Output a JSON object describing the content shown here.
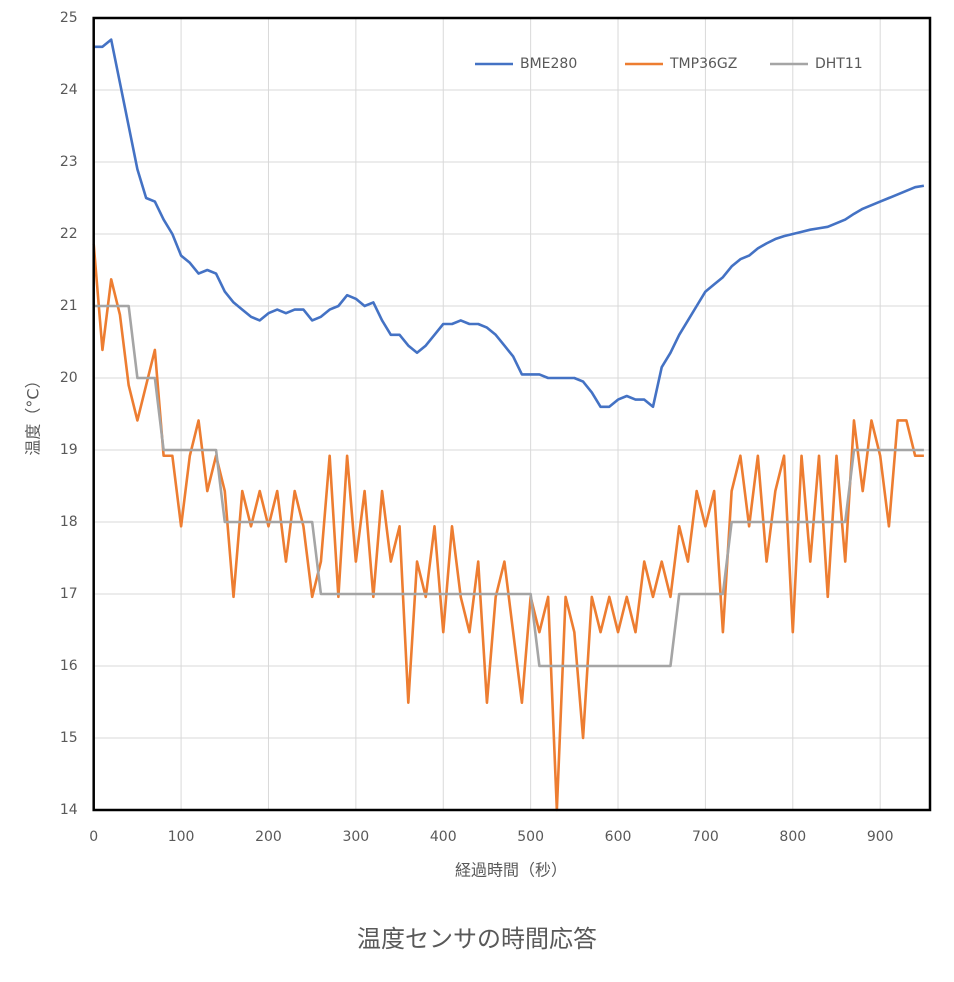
{
  "chart_data": {
    "type": "line",
    "title": "温度センサの時間応答",
    "x_label": "経過時間（秒）",
    "y_label": "温度（°C）",
    "x": [
      0,
      10,
      20,
      30,
      40,
      50,
      60,
      70,
      80,
      90,
      100,
      110,
      120,
      130,
      140,
      150,
      160,
      170,
      180,
      190,
      200,
      210,
      220,
      230,
      240,
      250,
      260,
      270,
      280,
      290,
      300,
      310,
      320,
      330,
      340,
      350,
      360,
      370,
      380,
      390,
      400,
      410,
      420,
      430,
      440,
      450,
      460,
      470,
      480,
      490,
      500,
      510,
      520,
      530,
      540,
      550,
      560,
      570,
      580,
      590,
      600,
      610,
      620,
      630,
      640,
      650,
      660,
      670,
      680,
      690,
      700,
      710,
      720,
      730,
      740,
      750,
      760,
      770,
      780,
      790,
      800,
      810,
      820,
      830,
      840,
      850,
      860,
      870,
      880,
      890,
      900,
      910,
      920,
      930,
      940,
      950
    ],
    "series": [
      {
        "name": "BME280",
        "color": "#4472c4",
        "values": [
          24.6,
          24.6,
          24.7,
          24.1,
          23.5,
          22.9,
          22.5,
          22.45,
          22.2,
          22.0,
          21.7,
          21.6,
          21.45,
          21.5,
          21.45,
          21.2,
          21.05,
          20.95,
          20.85,
          20.8,
          20.9,
          20.95,
          20.9,
          20.95,
          20.95,
          20.8,
          20.85,
          20.95,
          21.0,
          21.15,
          21.1,
          21.0,
          21.05,
          20.8,
          20.6,
          20.6,
          20.45,
          20.35,
          20.45,
          20.6,
          20.75,
          20.75,
          20.8,
          20.75,
          20.75,
          20.7,
          20.6,
          20.45,
          20.3,
          20.05,
          20.05,
          20.05,
          20.0,
          20.0,
          20.0,
          20.0,
          19.95,
          19.8,
          19.6,
          19.6,
          19.7,
          19.75,
          19.7,
          19.7,
          19.6,
          20.15,
          20.35,
          20.6,
          20.8,
          21.0,
          21.2,
          21.3,
          21.4,
          21.55,
          21.65,
          21.7,
          21.8,
          21.87,
          21.93,
          21.97,
          22.0,
          22.03,
          22.06,
          22.08,
          22.1,
          22.15,
          22.2,
          22.28,
          22.35,
          22.4,
          22.45,
          22.5,
          22.55,
          22.6,
          22.65,
          22.67
        ]
      },
      {
        "name": "TMP36GZ",
        "color": "#ed7d31",
        "values": [
          21.86,
          20.39,
          21.37,
          20.88,
          19.9,
          19.41,
          19.9,
          20.39,
          18.92,
          18.92,
          17.94,
          18.92,
          19.41,
          18.43,
          18.92,
          18.43,
          16.96,
          18.43,
          17.94,
          18.43,
          17.94,
          18.43,
          17.45,
          18.43,
          17.94,
          16.96,
          17.45,
          18.92,
          16.96,
          18.92,
          17.45,
          18.43,
          16.96,
          18.43,
          17.45,
          17.94,
          15.49,
          17.45,
          16.96,
          17.94,
          16.47,
          17.94,
          16.96,
          16.47,
          17.45,
          15.49,
          16.96,
          17.45,
          16.47,
          15.49,
          16.96,
          16.47,
          16.96,
          14.0,
          16.96,
          16.47,
          15.0,
          16.96,
          16.47,
          16.96,
          16.47,
          16.96,
          16.47,
          17.45,
          16.96,
          17.45,
          16.96,
          17.94,
          17.45,
          18.43,
          17.94,
          18.43,
          16.47,
          18.43,
          18.92,
          17.94,
          18.92,
          17.45,
          18.43,
          18.92,
          16.47,
          18.92,
          17.45,
          18.92,
          16.96,
          18.92,
          17.45,
          19.41,
          18.43,
          19.41,
          18.92,
          17.94,
          19.41,
          19.41,
          18.92,
          18.92
        ]
      },
      {
        "name": "DHT11",
        "color": "#a5a5a5",
        "values": [
          21,
          21,
          21,
          21,
          21,
          20,
          20,
          20,
          19,
          19,
          19,
          19,
          19,
          19,
          19,
          18,
          18,
          18,
          18,
          18,
          18,
          18,
          18,
          18,
          18,
          18,
          17,
          17,
          17,
          17,
          17,
          17,
          17,
          17,
          17,
          17,
          17,
          17,
          17,
          17,
          17,
          17,
          17,
          17,
          17,
          17,
          17,
          17,
          17,
          17,
          17,
          16,
          16,
          16,
          16,
          16,
          16,
          16,
          16,
          16,
          16,
          16,
          16,
          16,
          16,
          16,
          16,
          17,
          17,
          17,
          17,
          17,
          17,
          18,
          18,
          18,
          18,
          18,
          18,
          18,
          18,
          18,
          18,
          18,
          18,
          18,
          18,
          19,
          19,
          19,
          19,
          19,
          19,
          19,
          19,
          19
        ]
      }
    ],
    "xlim": [
      0,
      957
    ],
    "ylim": [
      14,
      25
    ],
    "xticks": [
      0,
      100,
      200,
      300,
      400,
      500,
      600,
      700,
      800,
      900
    ],
    "yticks": [
      14,
      15,
      16,
      17,
      18,
      19,
      20,
      21,
      22,
      23,
      24,
      25
    ],
    "grid": true,
    "legend": "upper right"
  }
}
